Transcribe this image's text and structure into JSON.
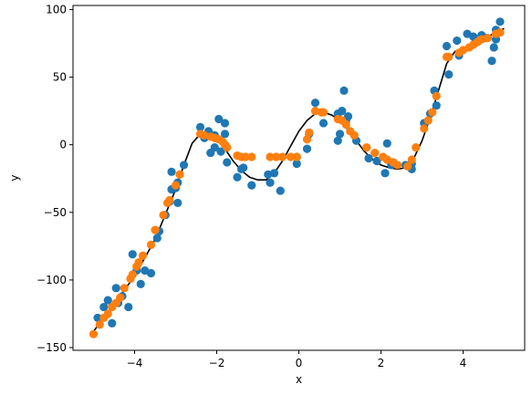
{
  "chart_data": {
    "type": "scatter",
    "xlabel": "x",
    "ylabel": "y",
    "xlim": [
      -5.5,
      5.5
    ],
    "ylim": [
      -152,
      103
    ],
    "x_ticks": [
      -4,
      -2,
      0,
      2,
      4
    ],
    "x_tick_labels": [
      "−4",
      "−2",
      "0",
      "2",
      "4"
    ],
    "y_ticks": [
      -150,
      -100,
      -50,
      0,
      50,
      100
    ],
    "y_tick_labels": [
      "−150",
      "−100",
      "−50",
      "0",
      "50",
      "100"
    ],
    "grid": false,
    "legend": "none",
    "series": [
      {
        "kind": "scatter",
        "color": "#1f77b4",
        "points": [
          [
            -4.9,
            -128
          ],
          [
            -4.75,
            -120
          ],
          [
            -4.65,
            -115
          ],
          [
            -4.55,
            -132
          ],
          [
            -4.45,
            -106
          ],
          [
            -4.4,
            -117
          ],
          [
            -4.3,
            -112
          ],
          [
            -4.15,
            -120
          ],
          [
            -4.05,
            -81
          ],
          [
            -3.95,
            -93
          ],
          [
            -3.85,
            -103
          ],
          [
            -3.75,
            -93
          ],
          [
            -3.6,
            -95
          ],
          [
            -3.45,
            -69
          ],
          [
            -3.4,
            -64
          ],
          [
            -3.25,
            -52
          ],
          [
            -3.15,
            -42
          ],
          [
            -3.1,
            -33
          ],
          [
            -3.1,
            -20
          ],
          [
            -3.0,
            -32
          ],
          [
            -2.95,
            -28
          ],
          [
            -2.95,
            -43
          ],
          [
            -2.8,
            -15
          ],
          [
            -2.4,
            13
          ],
          [
            -2.3,
            5
          ],
          [
            -2.2,
            10
          ],
          [
            -2.15,
            -6
          ],
          [
            -2.05,
            -2
          ],
          [
            -2.05,
            7
          ],
          [
            -1.95,
            19
          ],
          [
            -1.9,
            -5
          ],
          [
            -1.8,
            8
          ],
          [
            -1.8,
            16
          ],
          [
            -1.75,
            -13
          ],
          [
            -1.5,
            -24
          ],
          [
            -1.4,
            -18
          ],
          [
            -1.35,
            -17
          ],
          [
            -1.15,
            -30
          ],
          [
            -0.75,
            -22
          ],
          [
            -0.7,
            -28
          ],
          [
            -0.6,
            -21
          ],
          [
            -0.45,
            -34
          ],
          [
            -0.05,
            -14
          ],
          [
            -0.05,
            -9
          ],
          [
            0.2,
            -3
          ],
          [
            0.25,
            8
          ],
          [
            0.4,
            31
          ],
          [
            0.6,
            16
          ],
          [
            0.95,
            23
          ],
          [
            0.95,
            3
          ],
          [
            1.0,
            8
          ],
          [
            1.05,
            25
          ],
          [
            1.1,
            40
          ],
          [
            1.15,
            18
          ],
          [
            1.2,
            21
          ],
          [
            1.4,
            3
          ],
          [
            1.7,
            -10
          ],
          [
            1.9,
            -12
          ],
          [
            2.1,
            -21
          ],
          [
            2.15,
            1
          ],
          [
            2.25,
            -15
          ],
          [
            2.3,
            -13
          ],
          [
            2.6,
            -15
          ],
          [
            2.75,
            -14
          ],
          [
            2.75,
            -18
          ],
          [
            3.05,
            16
          ],
          [
            3.2,
            23
          ],
          [
            3.3,
            40
          ],
          [
            3.35,
            29
          ],
          [
            3.6,
            73
          ],
          [
            3.65,
            52
          ],
          [
            3.85,
            77
          ],
          [
            3.9,
            66
          ],
          [
            4.1,
            82
          ],
          [
            4.25,
            80
          ],
          [
            4.3,
            76
          ],
          [
            4.45,
            81
          ],
          [
            4.7,
            62
          ],
          [
            4.75,
            72
          ],
          [
            4.8,
            85
          ],
          [
            4.9,
            91
          ],
          [
            4.8,
            78
          ],
          [
            4.55,
            79
          ]
        ]
      },
      {
        "kind": "scatter",
        "color": "#ff7f0e",
        "points": [
          [
            -5.0,
            -140
          ],
          [
            -4.85,
            -133
          ],
          [
            -4.75,
            -128
          ],
          [
            -4.65,
            -125
          ],
          [
            -4.55,
            -120
          ],
          [
            -4.45,
            -117
          ],
          [
            -4.35,
            -113
          ],
          [
            -4.25,
            -106
          ],
          [
            -4.1,
            -99
          ],
          [
            -4.05,
            -96
          ],
          [
            -3.95,
            -90
          ],
          [
            -3.9,
            -87
          ],
          [
            -3.8,
            -82
          ],
          [
            -3.6,
            -74
          ],
          [
            -3.5,
            -63
          ],
          [
            -3.3,
            -52
          ],
          [
            -3.2,
            -43
          ],
          [
            -3.15,
            -41
          ],
          [
            -3.0,
            -30
          ],
          [
            -2.9,
            -22
          ],
          [
            -2.4,
            8
          ],
          [
            -2.3,
            7
          ],
          [
            -2.15,
            6
          ],
          [
            -2.05,
            5
          ],
          [
            -1.95,
            4
          ],
          [
            -1.85,
            2
          ],
          [
            -1.8,
            0
          ],
          [
            -1.75,
            -2
          ],
          [
            -1.5,
            -8
          ],
          [
            -1.4,
            -9
          ],
          [
            -1.3,
            -9
          ],
          [
            -1.15,
            -9
          ],
          [
            -0.7,
            -9
          ],
          [
            -0.55,
            -9
          ],
          [
            -0.4,
            -9
          ],
          [
            -0.2,
            -9
          ],
          [
            -0.05,
            -9
          ],
          [
            0.2,
            4
          ],
          [
            0.25,
            9
          ],
          [
            0.4,
            25
          ],
          [
            0.55,
            24
          ],
          [
            0.6,
            24
          ],
          [
            0.95,
            19
          ],
          [
            1.05,
            18
          ],
          [
            1.15,
            15
          ],
          [
            1.25,
            10
          ],
          [
            1.35,
            7
          ],
          [
            1.65,
            -2
          ],
          [
            1.85,
            -6
          ],
          [
            2.05,
            -9
          ],
          [
            2.15,
            -11
          ],
          [
            2.3,
            -13
          ],
          [
            2.4,
            -15
          ],
          [
            2.65,
            -16
          ],
          [
            2.75,
            -11
          ],
          [
            2.85,
            -2
          ],
          [
            3.05,
            12
          ],
          [
            3.15,
            18
          ],
          [
            3.25,
            24
          ],
          [
            3.35,
            36
          ],
          [
            3.6,
            65
          ],
          [
            3.65,
            65
          ],
          [
            3.9,
            68
          ],
          [
            4.0,
            70
          ],
          [
            4.15,
            72
          ],
          [
            4.25,
            74
          ],
          [
            4.35,
            76
          ],
          [
            4.45,
            78
          ],
          [
            4.6,
            79
          ],
          [
            4.8,
            82
          ],
          [
            4.9,
            83
          ]
        ]
      },
      {
        "kind": "line",
        "color": "#000000",
        "points": [
          [
            -5.0,
            -138
          ],
          [
            -4.5,
            -118
          ],
          [
            -4.0,
            -97
          ],
          [
            -3.5,
            -70
          ],
          [
            -3.0,
            -33
          ],
          [
            -2.8,
            -15
          ],
          [
            -2.6,
            1
          ],
          [
            -2.4,
            8
          ],
          [
            -2.2,
            10
          ],
          [
            -2.0,
            6
          ],
          [
            -1.8,
            -3
          ],
          [
            -1.6,
            -12
          ],
          [
            -1.4,
            -19
          ],
          [
            -1.2,
            -24
          ],
          [
            -1.0,
            -26
          ],
          [
            -0.8,
            -26
          ],
          [
            -0.6,
            -21
          ],
          [
            -0.4,
            -12
          ],
          [
            -0.2,
            -1
          ],
          [
            0.0,
            10
          ],
          [
            0.2,
            18
          ],
          [
            0.4,
            23
          ],
          [
            0.6,
            24
          ],
          [
            0.8,
            22
          ],
          [
            1.0,
            18
          ],
          [
            1.2,
            11
          ],
          [
            1.4,
            3
          ],
          [
            1.6,
            -5
          ],
          [
            1.8,
            -11
          ],
          [
            2.0,
            -15
          ],
          [
            2.2,
            -17
          ],
          [
            2.4,
            -18
          ],
          [
            2.6,
            -17
          ],
          [
            2.8,
            -10
          ],
          [
            3.0,
            3
          ],
          [
            3.2,
            20
          ],
          [
            3.4,
            40
          ],
          [
            3.6,
            60
          ],
          [
            3.8,
            69
          ],
          [
            4.0,
            71
          ],
          [
            4.2,
            74
          ],
          [
            4.4,
            77
          ],
          [
            4.6,
            80
          ],
          [
            4.8,
            83
          ],
          [
            5.0,
            86
          ]
        ]
      }
    ]
  }
}
